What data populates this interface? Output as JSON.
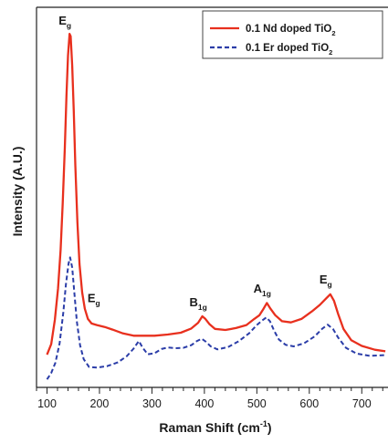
{
  "chart_data": {
    "type": "line",
    "title": "",
    "xlabel": "Raman Shift (cm",
    "xlabel_sup": "-1",
    "xlabel_end": ")",
    "ylabel": "Intensity (A.U.)",
    "xlim": [
      80,
      750
    ],
    "ylim": [
      0,
      1
    ],
    "xticks": [
      100,
      200,
      300,
      400,
      500,
      600,
      700
    ],
    "y_tick_labels": false,
    "grid": false,
    "legend_position": "top-right",
    "series": [
      {
        "name": "0.1 Nd doped TiO",
        "name_sub": "2",
        "color": "#e8301e",
        "dash": "solid",
        "points": [
          [
            100,
            0.086
          ],
          [
            108,
            0.114
          ],
          [
            115,
            0.178
          ],
          [
            121,
            0.261
          ],
          [
            126,
            0.362
          ],
          [
            130,
            0.485
          ],
          [
            134,
            0.63
          ],
          [
            137,
            0.767
          ],
          [
            140,
            0.873
          ],
          [
            143,
            0.93
          ],
          [
            145,
            0.924
          ],
          [
            148,
            0.846
          ],
          [
            151,
            0.727
          ],
          [
            154,
            0.585
          ],
          [
            158,
            0.434
          ],
          [
            162,
            0.324
          ],
          [
            167,
            0.25
          ],
          [
            172,
            0.207
          ],
          [
            178,
            0.18
          ],
          [
            185,
            0.168
          ],
          [
            195,
            0.164
          ],
          [
            210,
            0.159
          ],
          [
            225,
            0.152
          ],
          [
            245,
            0.142
          ],
          [
            265,
            0.136
          ],
          [
            285,
            0.136
          ],
          [
            305,
            0.136
          ],
          [
            330,
            0.139
          ],
          [
            355,
            0.144
          ],
          [
            375,
            0.155
          ],
          [
            388,
            0.17
          ],
          [
            396,
            0.187
          ],
          [
            402,
            0.18
          ],
          [
            410,
            0.166
          ],
          [
            420,
            0.154
          ],
          [
            440,
            0.151
          ],
          [
            460,
            0.156
          ],
          [
            480,
            0.164
          ],
          [
            495,
            0.18
          ],
          [
            505,
            0.19
          ],
          [
            512,
            0.205
          ],
          [
            519,
            0.222
          ],
          [
            526,
            0.207
          ],
          [
            535,
            0.19
          ],
          [
            548,
            0.174
          ],
          [
            565,
            0.171
          ],
          [
            585,
            0.18
          ],
          [
            605,
            0.2
          ],
          [
            620,
            0.217
          ],
          [
            632,
            0.234
          ],
          [
            640,
            0.245
          ],
          [
            647,
            0.228
          ],
          [
            655,
            0.193
          ],
          [
            665,
            0.154
          ],
          [
            680,
            0.124
          ],
          [
            700,
            0.109
          ],
          [
            725,
            0.099
          ],
          [
            745,
            0.095
          ]
        ]
      },
      {
        "name": "0.1 Er doped TiO",
        "name_sub": "2",
        "color": "#2b3da8",
        "dash": "dashed",
        "points": [
          [
            100,
            0.021
          ],
          [
            108,
            0.038
          ],
          [
            116,
            0.065
          ],
          [
            124,
            0.116
          ],
          [
            131,
            0.196
          ],
          [
            136,
            0.271
          ],
          [
            141,
            0.326
          ],
          [
            144,
            0.342
          ],
          [
            148,
            0.315
          ],
          [
            152,
            0.25
          ],
          [
            157,
            0.173
          ],
          [
            163,
            0.111
          ],
          [
            170,
            0.074
          ],
          [
            180,
            0.054
          ],
          [
            195,
            0.052
          ],
          [
            215,
            0.056
          ],
          [
            235,
            0.066
          ],
          [
            252,
            0.082
          ],
          [
            265,
            0.102
          ],
          [
            275,
            0.122
          ],
          [
            282,
            0.105
          ],
          [
            292,
            0.087
          ],
          [
            305,
            0.09
          ],
          [
            318,
            0.101
          ],
          [
            330,
            0.105
          ],
          [
            345,
            0.103
          ],
          [
            360,
            0.104
          ],
          [
            375,
            0.111
          ],
          [
            386,
            0.122
          ],
          [
            395,
            0.128
          ],
          [
            402,
            0.121
          ],
          [
            412,
            0.108
          ],
          [
            425,
            0.1
          ],
          [
            445,
            0.106
          ],
          [
            465,
            0.121
          ],
          [
            485,
            0.142
          ],
          [
            500,
            0.164
          ],
          [
            510,
            0.176
          ],
          [
            518,
            0.184
          ],
          [
            525,
            0.174
          ],
          [
            533,
            0.149
          ],
          [
            542,
            0.126
          ],
          [
            555,
            0.112
          ],
          [
            570,
            0.108
          ],
          [
            590,
            0.116
          ],
          [
            610,
            0.134
          ],
          [
            625,
            0.155
          ],
          [
            635,
            0.165
          ],
          [
            645,
            0.154
          ],
          [
            655,
            0.131
          ],
          [
            670,
            0.104
          ],
          [
            690,
            0.089
          ],
          [
            715,
            0.083
          ],
          [
            745,
            0.085
          ]
        ]
      }
    ],
    "annotations": [
      {
        "text": "E",
        "sub": "g",
        "x": 143,
        "y": 0.93
      },
      {
        "text": "E",
        "sub": "g",
        "x": 198,
        "y": 0.2
      },
      {
        "text": "B",
        "sub": "1g",
        "x": 397,
        "y": 0.19
      },
      {
        "text": "A",
        "sub": "1g",
        "x": 519,
        "y": 0.225
      },
      {
        "text": "E",
        "sub": "g",
        "x": 640,
        "y": 0.25
      }
    ]
  }
}
